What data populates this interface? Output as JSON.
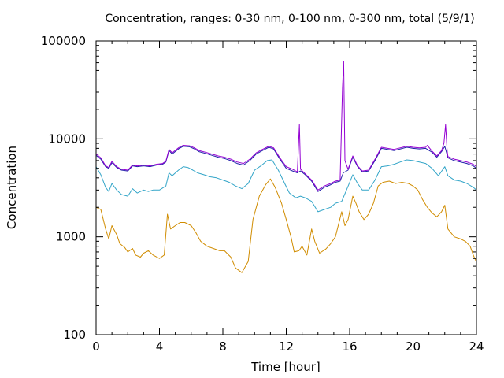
{
  "chart_data": {
    "type": "line",
    "title": "Concentration, ranges: 0-30 nm, 0-100 nm, 0-300 nm, total (5/9/1)",
    "xlabel": "Time [hour]",
    "ylabel": "Concentration",
    "xlim": [
      0,
      24
    ],
    "ylim": [
      100,
      100000
    ],
    "yscale": "log",
    "x_ticks": [
      0,
      4,
      8,
      12,
      16,
      20,
      24
    ],
    "x_tick_labels": [
      "0",
      "4",
      "8",
      "12",
      "16",
      "20",
      "24"
    ],
    "y_ticks": [
      100,
      1000,
      10000,
      100000
    ],
    "y_tick_labels": [
      "100",
      "1000",
      "10000",
      "100000"
    ],
    "grid": false,
    "legend": "none",
    "series": [
      {
        "color": "#d08c00",
        "points": [
          [
            0,
            2000
          ],
          [
            0.3,
            1900
          ],
          [
            0.6,
            1200
          ],
          [
            0.8,
            950
          ],
          [
            1.0,
            1300
          ],
          [
            1.3,
            1050
          ],
          [
            1.5,
            850
          ],
          [
            1.8,
            780
          ],
          [
            2.0,
            700
          ],
          [
            2.3,
            760
          ],
          [
            2.5,
            650
          ],
          [
            2.8,
            620
          ],
          [
            3.0,
            680
          ],
          [
            3.3,
            720
          ],
          [
            3.6,
            650
          ],
          [
            4.0,
            600
          ],
          [
            4.3,
            650
          ],
          [
            4.5,
            1700
          ],
          [
            4.7,
            1200
          ],
          [
            5.0,
            1300
          ],
          [
            5.3,
            1400
          ],
          [
            5.6,
            1400
          ],
          [
            6.0,
            1300
          ],
          [
            6.3,
            1100
          ],
          [
            6.6,
            900
          ],
          [
            7.0,
            800
          ],
          [
            7.4,
            760
          ],
          [
            7.8,
            720
          ],
          [
            8.1,
            720
          ],
          [
            8.5,
            620
          ],
          [
            8.8,
            480
          ],
          [
            9.2,
            430
          ],
          [
            9.6,
            560
          ],
          [
            9.9,
            1500
          ],
          [
            10.3,
            2600
          ],
          [
            10.7,
            3400
          ],
          [
            11.0,
            3900
          ],
          [
            11.3,
            3200
          ],
          [
            11.7,
            2200
          ],
          [
            12.0,
            1500
          ],
          [
            12.3,
            1000
          ],
          [
            12.5,
            700
          ],
          [
            12.8,
            720
          ],
          [
            13.0,
            800
          ],
          [
            13.3,
            650
          ],
          [
            13.6,
            1200
          ],
          [
            13.8,
            900
          ],
          [
            14.1,
            680
          ],
          [
            14.5,
            750
          ],
          [
            14.8,
            850
          ],
          [
            15.1,
            1000
          ],
          [
            15.5,
            1800
          ],
          [
            15.7,
            1300
          ],
          [
            15.9,
            1500
          ],
          [
            16.2,
            2600
          ],
          [
            16.4,
            2200
          ],
          [
            16.6,
            1800
          ],
          [
            16.9,
            1500
          ],
          [
            17.2,
            1700
          ],
          [
            17.5,
            2200
          ],
          [
            17.8,
            3300
          ],
          [
            18.1,
            3600
          ],
          [
            18.5,
            3700
          ],
          [
            18.9,
            3500
          ],
          [
            19.3,
            3600
          ],
          [
            19.7,
            3500
          ],
          [
            20.0,
            3300
          ],
          [
            20.3,
            3000
          ],
          [
            20.6,
            2400
          ],
          [
            20.9,
            2000
          ],
          [
            21.2,
            1750
          ],
          [
            21.5,
            1600
          ],
          [
            21.8,
            1800
          ],
          [
            22.0,
            2100
          ],
          [
            22.2,
            1200
          ],
          [
            22.6,
            1000
          ],
          [
            23.0,
            950
          ],
          [
            23.3,
            900
          ],
          [
            23.6,
            800
          ],
          [
            23.8,
            650
          ],
          [
            24.0,
            550
          ]
        ]
      },
      {
        "color": "#33a5c8",
        "points": [
          [
            0,
            5200
          ],
          [
            0.3,
            4300
          ],
          [
            0.6,
            3200
          ],
          [
            0.8,
            2900
          ],
          [
            1.0,
            3500
          ],
          [
            1.3,
            3000
          ],
          [
            1.6,
            2700
          ],
          [
            2.0,
            2600
          ],
          [
            2.3,
            3100
          ],
          [
            2.6,
            2800
          ],
          [
            3.0,
            3000
          ],
          [
            3.3,
            2900
          ],
          [
            3.6,
            3000
          ],
          [
            4.0,
            3000
          ],
          [
            4.4,
            3300
          ],
          [
            4.6,
            4500
          ],
          [
            4.8,
            4200
          ],
          [
            5.2,
            4800
          ],
          [
            5.5,
            5200
          ],
          [
            5.8,
            5100
          ],
          [
            6.1,
            4800
          ],
          [
            6.4,
            4500
          ],
          [
            6.8,
            4300
          ],
          [
            7.2,
            4100
          ],
          [
            7.6,
            4000
          ],
          [
            8.0,
            3800
          ],
          [
            8.4,
            3600
          ],
          [
            8.8,
            3300
          ],
          [
            9.2,
            3100
          ],
          [
            9.6,
            3500
          ],
          [
            10.0,
            4800
          ],
          [
            10.4,
            5300
          ],
          [
            10.8,
            6000
          ],
          [
            11.1,
            6100
          ],
          [
            11.5,
            4800
          ],
          [
            11.9,
            3500
          ],
          [
            12.2,
            2800
          ],
          [
            12.6,
            2500
          ],
          [
            12.9,
            2600
          ],
          [
            13.2,
            2500
          ],
          [
            13.6,
            2300
          ],
          [
            14.0,
            1800
          ],
          [
            14.4,
            1900
          ],
          [
            14.8,
            2000
          ],
          [
            15.1,
            2200
          ],
          [
            15.5,
            2300
          ],
          [
            15.8,
            3000
          ],
          [
            16.2,
            4300
          ],
          [
            16.5,
            3500
          ],
          [
            16.8,
            3000
          ],
          [
            17.2,
            3000
          ],
          [
            17.6,
            3800
          ],
          [
            18.0,
            5200
          ],
          [
            18.4,
            5300
          ],
          [
            18.8,
            5500
          ],
          [
            19.2,
            5800
          ],
          [
            19.6,
            6100
          ],
          [
            20.0,
            6000
          ],
          [
            20.4,
            5800
          ],
          [
            20.8,
            5600
          ],
          [
            21.2,
            5000
          ],
          [
            21.6,
            4200
          ],
          [
            22.0,
            5200
          ],
          [
            22.2,
            4200
          ],
          [
            22.6,
            3800
          ],
          [
            23.0,
            3700
          ],
          [
            23.4,
            3500
          ],
          [
            23.8,
            3200
          ],
          [
            24.0,
            3000
          ]
        ]
      },
      {
        "color": "#2222aa",
        "points": [
          [
            0,
            6800
          ],
          [
            0.3,
            6200
          ],
          [
            0.6,
            5200
          ],
          [
            0.8,
            5000
          ],
          [
            1.0,
            5700
          ],
          [
            1.3,
            5100
          ],
          [
            1.6,
            4800
          ],
          [
            2.0,
            4700
          ],
          [
            2.3,
            5300
          ],
          [
            2.6,
            5200
          ],
          [
            3.0,
            5300
          ],
          [
            3.4,
            5200
          ],
          [
            3.8,
            5400
          ],
          [
            4.2,
            5500
          ],
          [
            4.4,
            5800
          ],
          [
            4.6,
            7600
          ],
          [
            4.8,
            7000
          ],
          [
            5.2,
            7900
          ],
          [
            5.5,
            8400
          ],
          [
            5.9,
            8300
          ],
          [
            6.2,
            7900
          ],
          [
            6.5,
            7400
          ],
          [
            6.9,
            7100
          ],
          [
            7.3,
            6800
          ],
          [
            7.7,
            6500
          ],
          [
            8.1,
            6300
          ],
          [
            8.5,
            6000
          ],
          [
            8.9,
            5600
          ],
          [
            9.3,
            5400
          ],
          [
            9.7,
            6000
          ],
          [
            10.1,
            7000
          ],
          [
            10.5,
            7600
          ],
          [
            10.9,
            8200
          ],
          [
            11.2,
            7900
          ],
          [
            11.6,
            6200
          ],
          [
            12.0,
            5000
          ],
          [
            12.4,
            4700
          ],
          [
            12.7,
            4500
          ],
          [
            12.9,
            4700
          ],
          [
            13.2,
            4300
          ],
          [
            13.6,
            3700
          ],
          [
            14.0,
            2900
          ],
          [
            14.4,
            3200
          ],
          [
            14.8,
            3400
          ],
          [
            15.1,
            3600
          ],
          [
            15.4,
            3700
          ],
          [
            15.6,
            4500
          ],
          [
            15.9,
            4800
          ],
          [
            16.2,
            6500
          ],
          [
            16.5,
            5200
          ],
          [
            16.8,
            4600
          ],
          [
            17.2,
            4700
          ],
          [
            17.6,
            6000
          ],
          [
            18.0,
            8000
          ],
          [
            18.4,
            7800
          ],
          [
            18.8,
            7600
          ],
          [
            19.2,
            7900
          ],
          [
            19.6,
            8200
          ],
          [
            20.0,
            8000
          ],
          [
            20.4,
            7900
          ],
          [
            20.8,
            8000
          ],
          [
            21.2,
            7300
          ],
          [
            21.5,
            6500
          ],
          [
            21.8,
            7400
          ],
          [
            22.0,
            8400
          ],
          [
            22.2,
            6400
          ],
          [
            22.6,
            6000
          ],
          [
            23.0,
            5800
          ],
          [
            23.4,
            5600
          ],
          [
            23.8,
            5300
          ],
          [
            24.0,
            5000
          ]
        ]
      },
      {
        "color": "#9400d3",
        "points": [
          [
            0,
            7000
          ],
          [
            0.3,
            6400
          ],
          [
            0.6,
            5300
          ],
          [
            0.8,
            5100
          ],
          [
            1.0,
            5900
          ],
          [
            1.3,
            5200
          ],
          [
            1.6,
            4900
          ],
          [
            2.0,
            4800
          ],
          [
            2.3,
            5400
          ],
          [
            2.6,
            5300
          ],
          [
            3.0,
            5400
          ],
          [
            3.4,
            5300
          ],
          [
            3.8,
            5500
          ],
          [
            4.2,
            5600
          ],
          [
            4.4,
            5900
          ],
          [
            4.6,
            7800
          ],
          [
            4.8,
            7200
          ],
          [
            5.2,
            8100
          ],
          [
            5.5,
            8600
          ],
          [
            5.9,
            8500
          ],
          [
            6.2,
            8100
          ],
          [
            6.5,
            7600
          ],
          [
            6.9,
            7300
          ],
          [
            7.3,
            7000
          ],
          [
            7.7,
            6700
          ],
          [
            8.1,
            6500
          ],
          [
            8.5,
            6200
          ],
          [
            8.9,
            5800
          ],
          [
            9.3,
            5600
          ],
          [
            9.7,
            6200
          ],
          [
            10.1,
            7200
          ],
          [
            10.5,
            7800
          ],
          [
            10.9,
            8400
          ],
          [
            11.2,
            8100
          ],
          [
            11.6,
            6400
          ],
          [
            12.0,
            5200
          ],
          [
            12.4,
            4900
          ],
          [
            12.7,
            4600
          ],
          [
            12.83,
            14000
          ],
          [
            12.9,
            4900
          ],
          [
            13.2,
            4400
          ],
          [
            13.6,
            3800
          ],
          [
            14.0,
            3000
          ],
          [
            14.4,
            3300
          ],
          [
            14.8,
            3500
          ],
          [
            15.1,
            3700
          ],
          [
            15.4,
            3800
          ],
          [
            15.55,
            33000
          ],
          [
            15.62,
            62000
          ],
          [
            15.7,
            6000
          ],
          [
            15.9,
            4900
          ],
          [
            16.2,
            6700
          ],
          [
            16.5,
            5300
          ],
          [
            16.8,
            4700
          ],
          [
            17.2,
            4800
          ],
          [
            17.6,
            6200
          ],
          [
            18.0,
            8200
          ],
          [
            18.4,
            8000
          ],
          [
            18.8,
            7800
          ],
          [
            19.2,
            8100
          ],
          [
            19.6,
            8400
          ],
          [
            20.0,
            8200
          ],
          [
            20.4,
            8100
          ],
          [
            20.8,
            8200
          ],
          [
            20.9,
            8600
          ],
          [
            21.2,
            7500
          ],
          [
            21.5,
            6700
          ],
          [
            21.8,
            7600
          ],
          [
            21.95,
            9000
          ],
          [
            22.05,
            14000
          ],
          [
            22.15,
            7500
          ],
          [
            22.2,
            6600
          ],
          [
            22.6,
            6200
          ],
          [
            23.0,
            6000
          ],
          [
            23.4,
            5800
          ],
          [
            23.8,
            5500
          ],
          [
            24.0,
            5200
          ]
        ]
      }
    ]
  }
}
